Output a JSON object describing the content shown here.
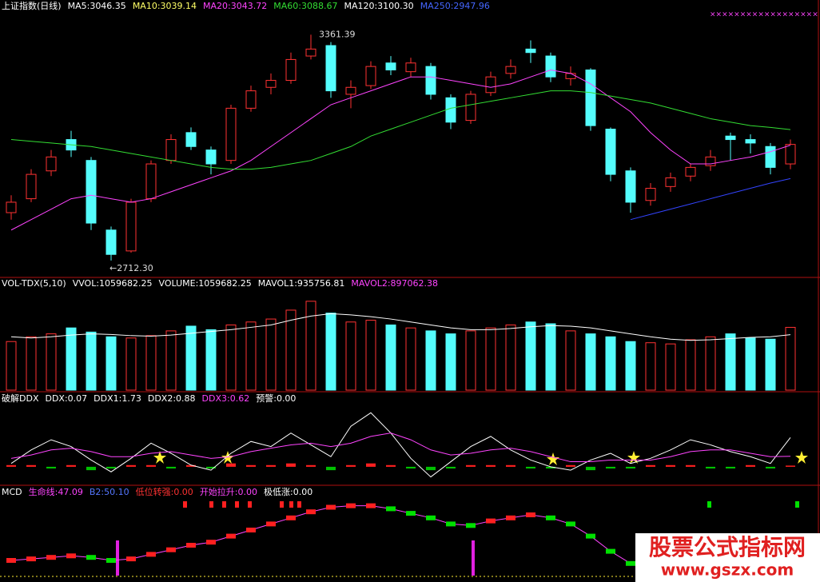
{
  "chart_data": [
    {
      "type": "candlestick",
      "header": [
        {
          "text": "上证指数(日线)",
          "color": "#ffffff"
        },
        {
          "text": "MA5:3046.35",
          "color": "#ffffff"
        },
        {
          "text": "MA10:3039.14",
          "color": "#ffff66"
        },
        {
          "text": "MA20:3043.72",
          "color": "#ff44ff"
        },
        {
          "text": "MA60:3088.67",
          "color": "#33dd33"
        },
        {
          "text": "MA120:3100.30",
          "color": "#ffffff"
        },
        {
          "text": "MA250:2947.96",
          "color": "#4466ff"
        }
      ],
      "annotations": [
        "3361.39",
        "←2712.30"
      ],
      "up_color": "#ff3232",
      "down_color": "#54fcfc",
      "ylim": [
        2680,
        3415
      ],
      "open": [
        2850,
        2890,
        2970,
        3060,
        3000,
        2800,
        2740,
        2890,
        3000,
        3080,
        3030,
        3000,
        3150,
        3210,
        3230,
        3300,
        3330,
        3190,
        3215,
        3280,
        3255,
        3270,
        3180,
        3115,
        3195,
        3250,
        3320,
        3300,
        3235,
        3260,
        3090,
        2970,
        2885,
        2925,
        2955,
        2985,
        3070,
        3060,
        3040,
        2990
      ],
      "close": [
        2880,
        2960,
        3010,
        3030,
        2820,
        2730,
        2880,
        2990,
        3060,
        3040,
        2990,
        3150,
        3200,
        3230,
        3290,
        3320,
        3200,
        3210,
        3270,
        3260,
        3280,
        3190,
        3110,
        3190,
        3240,
        3270,
        3310,
        3240,
        3250,
        3100,
        2960,
        2880,
        2920,
        2950,
        2980,
        3010,
        3060,
        3050,
        2980,
        3046
      ],
      "high": [
        2900,
        2975,
        3030,
        3085,
        3010,
        2810,
        2890,
        3000,
        3075,
        3095,
        3040,
        3160,
        3215,
        3250,
        3310,
        3361.39,
        3340,
        3230,
        3285,
        3300,
        3295,
        3280,
        3190,
        3200,
        3255,
        3290,
        3345,
        3310,
        3270,
        3265,
        3095,
        2980,
        2935,
        2965,
        2990,
        3030,
        3080,
        3075,
        3050,
        3060
      ],
      "low": [
        2830,
        2880,
        2955,
        3010,
        2800,
        2712.3,
        2735,
        2880,
        2990,
        3030,
        2960,
        2990,
        3140,
        3190,
        3220,
        3290,
        3180,
        3150,
        3205,
        3245,
        3240,
        3175,
        3090,
        3105,
        3185,
        3235,
        3280,
        3225,
        3215,
        3085,
        2940,
        2850,
        2870,
        2910,
        2940,
        2970,
        3000,
        3020,
        2960,
        2975
      ],
      "series": [
        {
          "color": "#ff44ff",
          "values": [
            2800,
            2830,
            2860,
            2890,
            2900,
            2890,
            2880,
            2890,
            2910,
            2930,
            2950,
            2970,
            3000,
            3040,
            3080,
            3120,
            3160,
            3180,
            3200,
            3220,
            3240,
            3240,
            3230,
            3220,
            3210,
            3220,
            3240,
            3260,
            3250,
            3220,
            3180,
            3140,
            3080,
            3030,
            2990,
            2990,
            3000,
            3010,
            3025,
            3043.72
          ]
        },
        {
          "color": "#33dd33",
          "values": [
            3060,
            3055,
            3050,
            3045,
            3040,
            3030,
            3020,
            3010,
            3000,
            2990,
            2980,
            2975,
            2975,
            2980,
            2990,
            3000,
            3020,
            3040,
            3070,
            3090,
            3110,
            3130,
            3150,
            3160,
            3170,
            3180,
            3190,
            3200,
            3200,
            3195,
            3185,
            3175,
            3165,
            3150,
            3135,
            3120,
            3110,
            3100,
            3095,
            3088.67
          ]
        },
        {
          "color": "#3344ff",
          "values": [
            null,
            null,
            null,
            null,
            null,
            null,
            null,
            null,
            null,
            null,
            null,
            null,
            null,
            null,
            null,
            null,
            null,
            null,
            null,
            null,
            null,
            null,
            null,
            null,
            null,
            null,
            null,
            null,
            null,
            null,
            null,
            2830,
            2845,
            2860,
            2875,
            2890,
            2905,
            2920,
            2935,
            2947.96
          ]
        }
      ]
    },
    {
      "type": "bar",
      "header": [
        {
          "text": "VOL-TDX(5,10)",
          "color": "#ffffff"
        },
        {
          "text": "VVOL:1059682.25",
          "color": "#ffffff"
        },
        {
          "text": "VOLUME:1059682.25",
          "color": "#ffffff"
        },
        {
          "text": "MAVOL1:935756.81",
          "color": "#ffffff"
        },
        {
          "text": "MAVOL2:897062.38",
          "color": "#ff44ff"
        }
      ],
      "ylim": [
        0,
        1700000
      ],
      "values": [
        820000,
        900000,
        950000,
        1050000,
        980000,
        900000,
        880000,
        920000,
        1000000,
        1080000,
        1020000,
        1100000,
        1150000,
        1200000,
        1350000,
        1500000,
        1300000,
        1150000,
        1180000,
        1100000,
        1050000,
        1000000,
        950000,
        1000000,
        1050000,
        1100000,
        1150000,
        1120000,
        1000000,
        950000,
        900000,
        820000,
        800000,
        780000,
        850000,
        900000,
        950000,
        880000,
        860000,
        1059682.25
      ],
      "series": [
        {
          "color": "#ffffff",
          "values": [
            900000,
            880000,
            900000,
            930000,
            950000,
            940000,
            920000,
            910000,
            930000,
            960000,
            990000,
            1020000,
            1060000,
            1100000,
            1180000,
            1250000,
            1290000,
            1270000,
            1240000,
            1200000,
            1150000,
            1100000,
            1050000,
            1020000,
            1020000,
            1040000,
            1070000,
            1090000,
            1080000,
            1050000,
            1000000,
            950000,
            900000,
            860000,
            840000,
            850000,
            870000,
            890000,
            900000,
            935756.81
          ]
        }
      ]
    },
    {
      "type": "oscillator",
      "header": [
        {
          "text": "破解DDX",
          "color": "#ffffff"
        },
        {
          "text": "DDX:0.07",
          "color": "#ffffff"
        },
        {
          "text": "DDX1:1.73",
          "color": "#ffffff"
        },
        {
          "text": "DDX2:0.88",
          "color": "#ffffff"
        },
        {
          "text": "DDX3:0.62",
          "color": "#ff44ff"
        },
        {
          "text": "预警:0.00",
          "color": "#ffffff"
        }
      ],
      "ylim": [
        -1,
        3.5
      ],
      "up_color": "#ff2020",
      "down_color": "#00c000",
      "values": [
        0.1,
        0.1,
        -0.1,
        0.1,
        -0.2,
        -0.1,
        0.1,
        0.1,
        -0.1,
        0.1,
        -0.1,
        0.2,
        0.1,
        0.1,
        0.2,
        0.1,
        -0.2,
        0.1,
        0.2,
        0.1,
        -0.1,
        -0.2,
        -0.1,
        0.1,
        0.1,
        0.1,
        -0.1,
        -0.1,
        0.1,
        -0.2,
        -0.1,
        -0.1,
        0.1,
        0.1,
        0.1,
        -0.1,
        -0.1,
        0.1,
        -0.1,
        0.07
      ],
      "series": [
        {
          "color": "#ffffff",
          "values": [
            0.2,
            1.0,
            1.6,
            1.2,
            0.4,
            -0.3,
            0.5,
            1.4,
            0.8,
            0.1,
            -0.2,
            0.8,
            1.5,
            1.2,
            2.0,
            1.3,
            0.6,
            2.4,
            3.2,
            2.0,
            0.5,
            -0.6,
            0.3,
            1.2,
            1.8,
            1.0,
            0.4,
            0,
            -0.2,
            0.4,
            0.8,
            0.2,
            0.5,
            1.0,
            1.6,
            1.3,
            0.9,
            0.6,
            0.2,
            1.73
          ]
        },
        {
          "color": "#ff44ff",
          "values": [
            0.5,
            0.7,
            1.0,
            1.1,
            0.9,
            0.6,
            0.6,
            0.8,
            0.9,
            0.7,
            0.5,
            0.6,
            0.9,
            1.1,
            1.3,
            1.4,
            1.2,
            1.4,
            1.8,
            2.0,
            1.6,
            1.0,
            0.7,
            0.8,
            1.0,
            1.1,
            0.9,
            0.6,
            0.3,
            0.3,
            0.4,
            0.4,
            0.4,
            0.6,
            0.9,
            1.0,
            1.0,
            0.8,
            0.6,
            0.62
          ]
        }
      ]
    },
    {
      "type": "line",
      "header": [
        {
          "text": "MCD",
          "color": "#ffffff"
        },
        {
          "text": "生命线:47.09",
          "color": "#ff44ff"
        },
        {
          "text": "B2:50.10",
          "color": "#5577ff"
        },
        {
          "text": "低位转强:0.00",
          "color": "#ff3232"
        },
        {
          "text": "开始拉升:0.00",
          "color": "#ff44ff"
        },
        {
          "text": "极低涨:0.00",
          "color": "#ffffff"
        }
      ],
      "ylim": [
        30,
        80
      ],
      "up_color": "#ff2020",
      "down_color": "#00e000",
      "values": [
        40,
        41,
        42,
        43,
        42,
        40,
        41,
        44,
        47,
        50,
        52,
        56,
        60,
        64,
        68,
        72,
        75,
        76,
        76,
        74,
        71,
        68,
        64,
        63,
        66,
        68,
        70,
        68,
        64,
        56,
        46,
        38,
        35,
        34,
        35,
        37,
        40,
        42,
        44,
        47.09
      ]
    }
  ],
  "watermark": {
    "title": "股票公式指标网",
    "url": "www.gszx.com"
  }
}
